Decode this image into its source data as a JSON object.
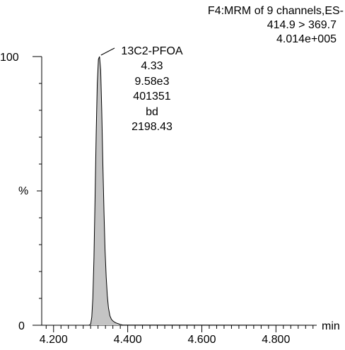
{
  "chart_data": {
    "type": "line",
    "header": {
      "line1": "F4:MRM of 9 channels,ES-",
      "line2": "414.9 > 369.7",
      "line3": "4.014e+005"
    },
    "xlabel": "min",
    "ylabel": "%",
    "xlim": [
      4.168,
      4.91
    ],
    "ylim": [
      0,
      100
    ],
    "x_ticks": [
      4.2,
      4.4,
      4.6,
      4.8
    ],
    "x_tick_labels": [
      "4.200",
      "4.400",
      "4.600",
      "4.800"
    ],
    "y_tick_labels": {
      "top": "100",
      "bottom": "0",
      "middle": "%"
    },
    "peak_labels": [
      "13C2-PFOA",
      "4.33",
      "9.58e3",
      "401351",
      "bd",
      "2198.43"
    ],
    "series": [
      {
        "x": [
          4.168,
          4.295,
          4.3,
          4.303,
          4.306,
          4.309,
          4.312,
          4.315,
          4.318,
          4.321,
          4.324,
          4.327,
          4.33,
          4.333,
          4.336,
          4.339,
          4.342,
          4.345,
          4.348,
          4.352,
          4.356,
          4.36,
          4.364,
          4.368,
          4.372,
          4.376,
          4.38,
          4.386,
          4.91
        ],
        "values": [
          0,
          0,
          0.4,
          3,
          10,
          25,
          48,
          72,
          90,
          99,
          100,
          95,
          80,
          60,
          42,
          28,
          18,
          11,
          6.5,
          3.5,
          2.2,
          1.6,
          1.2,
          0.9,
          0.7,
          0.5,
          0.3,
          0.1,
          0
        ]
      }
    ]
  }
}
